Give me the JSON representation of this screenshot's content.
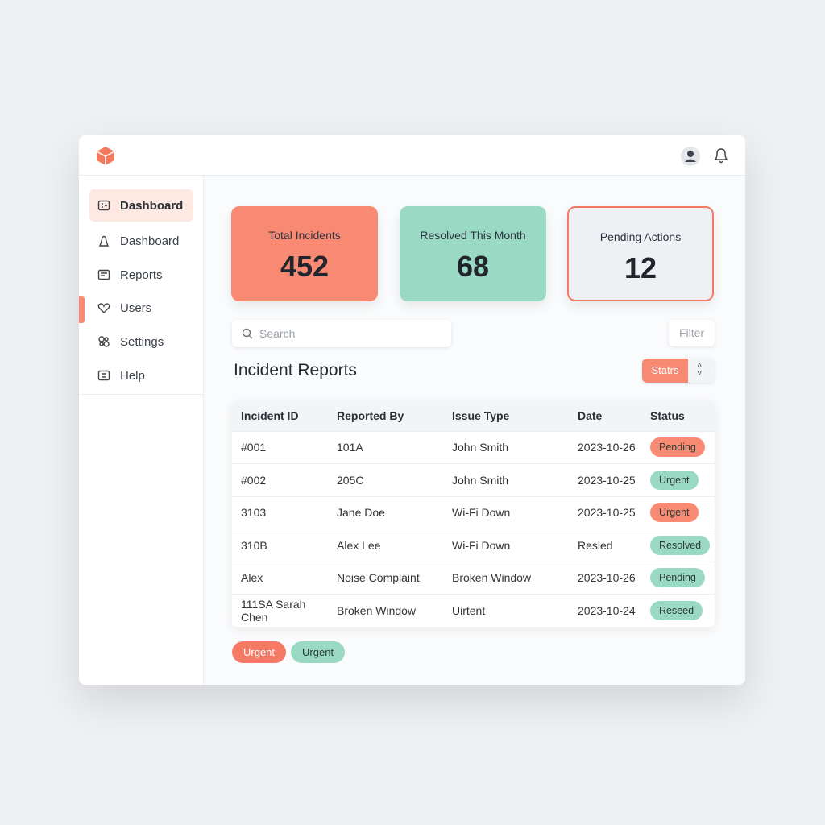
{
  "nav": [
    "Dashboard",
    "Dashboard",
    "Reports",
    "Users",
    "Settings",
    "Help"
  ],
  "stats": [
    {
      "label": "Total Incidents",
      "value": 452,
      "color": "#f88a74"
    },
    {
      "label": "Resolved This Month",
      "value": 68,
      "color": "#9ad9c4"
    },
    {
      "label": "Pending Actions",
      "value": 12,
      "color": "#eef0f3"
    }
  ],
  "search": "Search",
  "filter": "Filter",
  "section_title": "Incident Reports",
  "sort_button": "Statrs",
  "table": {
    "headers": [
      "Incident ID",
      "Reported By",
      "Issue Type",
      "Date",
      "Status"
    ],
    "rows": [
      [
        "#001",
        "101A",
        "John Smith",
        "2023-10-26",
        "Pending"
      ],
      [
        "#002",
        "205C",
        "John Smith",
        "2023-10-25",
        "Urgent"
      ],
      [
        "3103",
        "Jane Doe",
        "Wi-Fi Down",
        "2023-10-25",
        "Urgent"
      ],
      [
        "310B",
        "Alex Lee",
        "Wi-Fi Down",
        "Resled",
        "Resolved"
      ],
      [
        "Alex",
        "Noise Complaint",
        "Broken Window",
        "2023-10-26",
        "Pending"
      ],
      [
        "111SA Sarah Chen",
        "Broken Window",
        "Uirtent",
        "2023-10-24",
        "Reseed"
      ]
    ],
    "status_colors": [
      "#f88a74",
      "#9ad9c4",
      "#f88a74",
      "#9ad9c4",
      "#9ad9c4",
      "#9ad9c4"
    ]
  },
  "tags": [
    {
      "text": "Urgent",
      "color": "#f47a66"
    },
    {
      "text": "Urgent",
      "color": "#9ad9c4"
    }
  ]
}
